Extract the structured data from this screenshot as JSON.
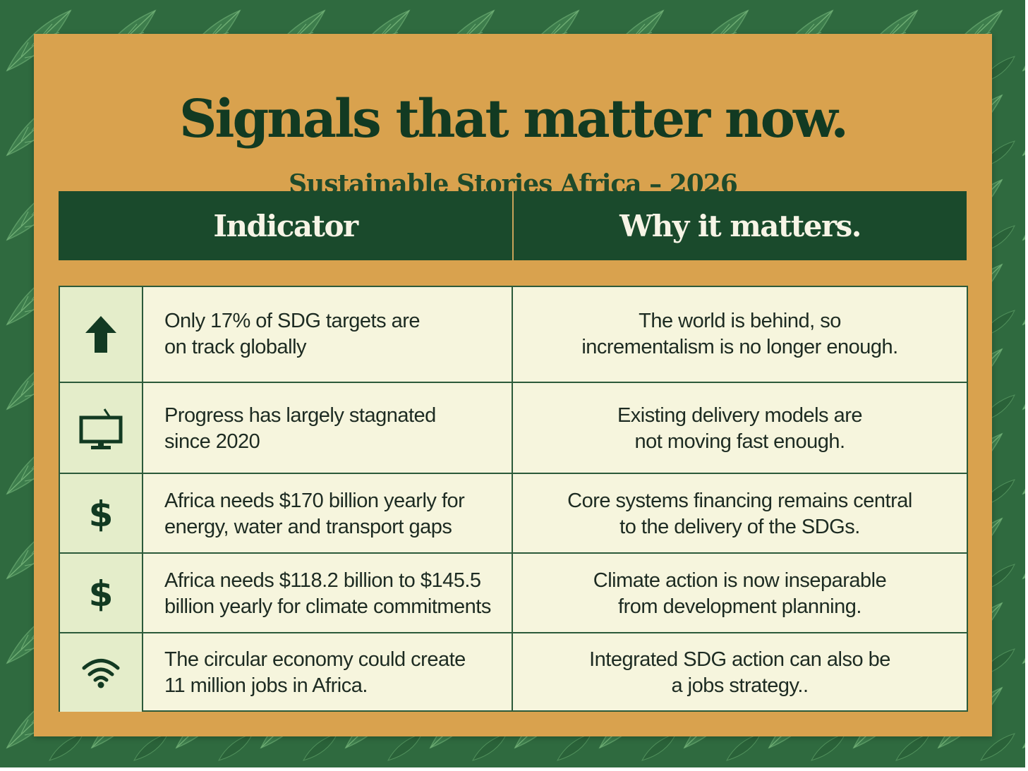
{
  "title": "Signals that matter now.",
  "subtitle": "Sustainable Stories Africa – 2026",
  "colors": {
    "background_leaves": "#2f6a3f",
    "panel": "#d9a24e",
    "header_band": "#1a4a2c",
    "table_body": "#f6f5dd",
    "icon_column": "#e4edca",
    "text_dark": "#123a22"
  },
  "table": {
    "headers": {
      "indicator": "Indicator",
      "why": "Why it matters."
    },
    "rows": [
      {
        "icon": "up-arrow-icon",
        "indicator": "Only 17% of SDG targets are\non track globally",
        "why": "The world is behind, so\nincrementalism is no longer enough."
      },
      {
        "icon": "monitor-icon",
        "indicator": "Progress has largely stagnated\nsince 2020",
        "why": "Existing delivery models are\nnot moving fast enough."
      },
      {
        "icon": "dollar-icon",
        "icon_text": "$",
        "indicator": "Africa needs $170 billion yearly for\nenergy, water and transport gaps",
        "why": "Core systems financing remains central\nto the delivery of the SDGs."
      },
      {
        "icon": "dollar-icon",
        "icon_text": "$",
        "indicator": "Africa needs $118.2 billion to $145.5\nbillion yearly for climate commitments",
        "why": "Climate action is now inseparable\nfrom development planning."
      },
      {
        "icon": "wifi-icon",
        "indicator": "The circular economy could create\n11 million jobs in Africa.",
        "why": "Integrated SDG action can also be\na jobs strategy.."
      }
    ]
  }
}
